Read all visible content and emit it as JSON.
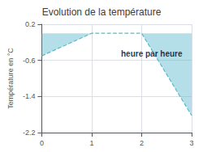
{
  "chart_data": {
    "type": "area",
    "title": "Evolution de la température",
    "ylabel": "Température en °C",
    "x": [
      0,
      1,
      2,
      3
    ],
    "values": [
      -0.5,
      0.0,
      0.0,
      -1.82
    ],
    "color": "#5ab8cc",
    "line_style": "dashed",
    "xlim": [
      0,
      3
    ],
    "ylim": [
      -2.2,
      0.2
    ],
    "xticks": [
      0,
      1,
      2,
      3
    ],
    "yticks": [
      0.2,
      -0.6,
      -1.4,
      -2.2
    ],
    "grid": true,
    "annotations": [
      {
        "text": "heure par heure",
        "x": 2.2,
        "y": -0.45
      }
    ]
  }
}
